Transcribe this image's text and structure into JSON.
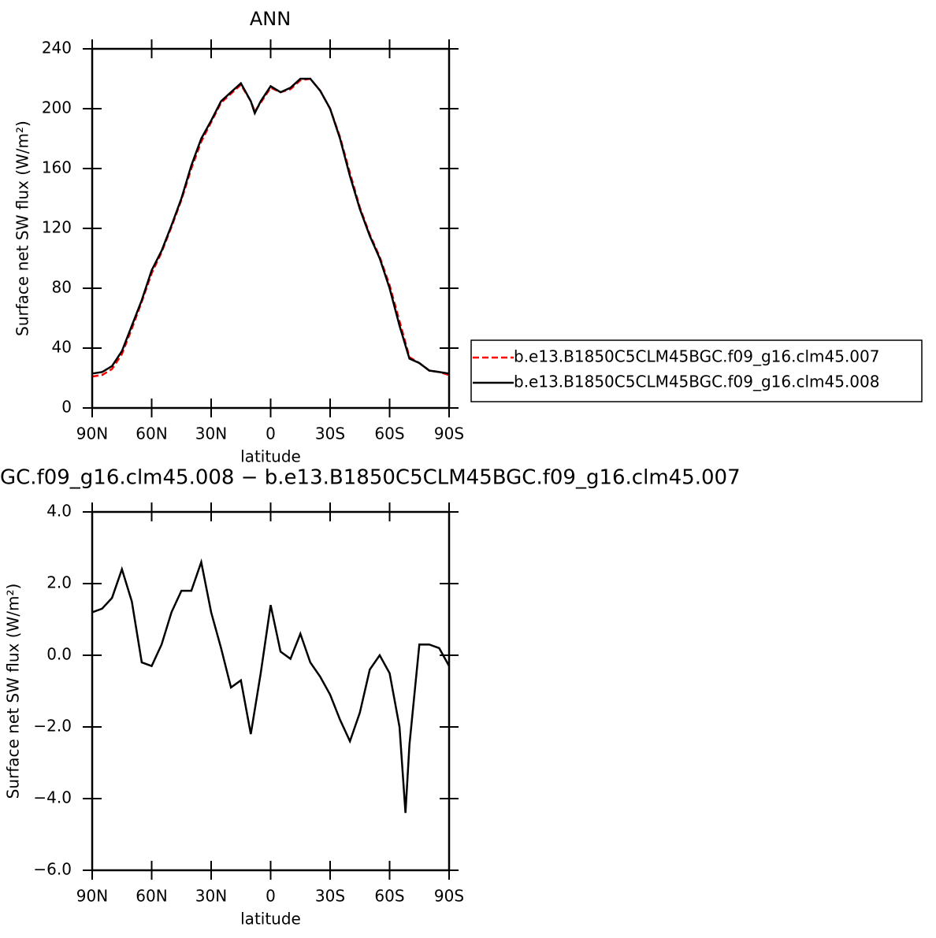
{
  "chart_data": [
    {
      "type": "line",
      "title": "ANN",
      "xlabel": "latitude",
      "ylabel": "Surface net SW flux (W/m²)",
      "x": [
        90,
        85,
        80,
        75,
        70,
        65,
        60,
        55,
        50,
        45,
        40,
        35,
        30,
        25,
        20,
        15,
        10,
        8,
        5,
        0,
        -5,
        -10,
        -15,
        -20,
        -25,
        -30,
        -35,
        -40,
        -45,
        -50,
        -55,
        -60,
        -65,
        -70,
        -75,
        -80,
        -85,
        -90
      ],
      "series": [
        {
          "name": "b.e13.B1850C5CLM45BGC.f09_g16.clm45.007",
          "color": "#ff0000",
          "line_style": "dashed",
          "values": [
            21,
            22,
            26,
            36,
            53,
            71,
            90,
            104,
            121,
            139,
            160,
            178,
            191,
            204,
            210,
            216,
            205,
            198,
            204,
            214,
            211,
            213,
            219,
            220,
            212,
            200,
            181,
            157,
            134,
            116,
            101,
            82,
            58,
            34,
            30,
            25,
            24,
            22
          ]
        },
        {
          "name": "b.e13.B1850C5CLM45BGC.f09_g16.clm45.008",
          "color": "#000000",
          "line_style": "solid",
          "values": [
            23,
            24,
            28,
            38,
            55,
            72,
            92,
            105,
            122,
            140,
            162,
            180,
            192,
            205,
            211,
            217,
            205,
            197,
            205,
            215,
            211,
            214,
            220,
            220,
            212,
            200,
            180,
            155,
            133,
            115,
            100,
            80,
            55,
            33,
            30,
            25,
            24,
            23
          ]
        }
      ],
      "xlim": [
        90,
        -90
      ],
      "xticks": [
        {
          "value": 90,
          "label": "90N"
        },
        {
          "value": 60,
          "label": "60N"
        },
        {
          "value": 30,
          "label": "30N"
        },
        0,
        {
          "value": -30,
          "label": "30S"
        },
        {
          "value": -60,
          "label": "60S"
        },
        {
          "value": -90,
          "label": "90S"
        }
      ],
      "ylim": [
        0,
        240
      ],
      "yticks": [
        0,
        40,
        80,
        120,
        160,
        200,
        240
      ],
      "legend": "right"
    },
    {
      "type": "line",
      "title": "GC.f09_g16.clm45.008 − b.e13.B1850C5CLM45BGC.f09_g16.clm45.007",
      "xlabel": "latitude",
      "ylabel": "Surface net SW flux (W/m²)",
      "x": [
        90,
        85,
        80,
        75,
        70,
        65,
        60,
        55,
        50,
        45,
        40,
        35,
        30,
        25,
        20,
        15,
        10,
        5,
        0,
        -5,
        -10,
        -15,
        -20,
        -25,
        -30,
        -35,
        -40,
        -45,
        -50,
        -55,
        -60,
        -65,
        -68,
        -70,
        -75,
        -80,
        -85,
        -90
      ],
      "series": [
        {
          "color": "#000000",
          "values": [
            1.2,
            1.3,
            1.6,
            2.4,
            1.5,
            -0.2,
            -0.3,
            0.3,
            1.2,
            1.8,
            1.8,
            2.6,
            1.2,
            0.2,
            -0.9,
            -0.7,
            -2.2,
            -0.5,
            1.4,
            0.1,
            -0.1,
            0.6,
            -0.2,
            -0.6,
            -1.1,
            -1.8,
            -2.4,
            -1.6,
            -0.4,
            0.0,
            -0.5,
            -2.0,
            -4.4,
            -2.5,
            0.3,
            0.3,
            0.2,
            -0.3
          ]
        }
      ],
      "xlim": [
        90,
        -90
      ],
      "xticks": [
        {
          "value": 90,
          "label": "90N"
        },
        {
          "value": 60,
          "label": "60N"
        },
        {
          "value": 30,
          "label": "30N"
        },
        0,
        {
          "value": -30,
          "label": "30S"
        },
        {
          "value": -60,
          "label": "60S"
        },
        {
          "value": -90,
          "label": "90S"
        }
      ],
      "ylim": [
        -6,
        4
      ],
      "yticks": [
        {
          "value": -6,
          "label": "−6.0"
        },
        {
          "value": -4,
          "label": "−4.0"
        },
        {
          "value": -2,
          "label": "−2.0"
        },
        {
          "value": 0,
          "label": "0.0"
        },
        {
          "value": 2,
          "label": "2.0"
        },
        {
          "value": 4,
          "label": "4.0"
        }
      ]
    }
  ]
}
